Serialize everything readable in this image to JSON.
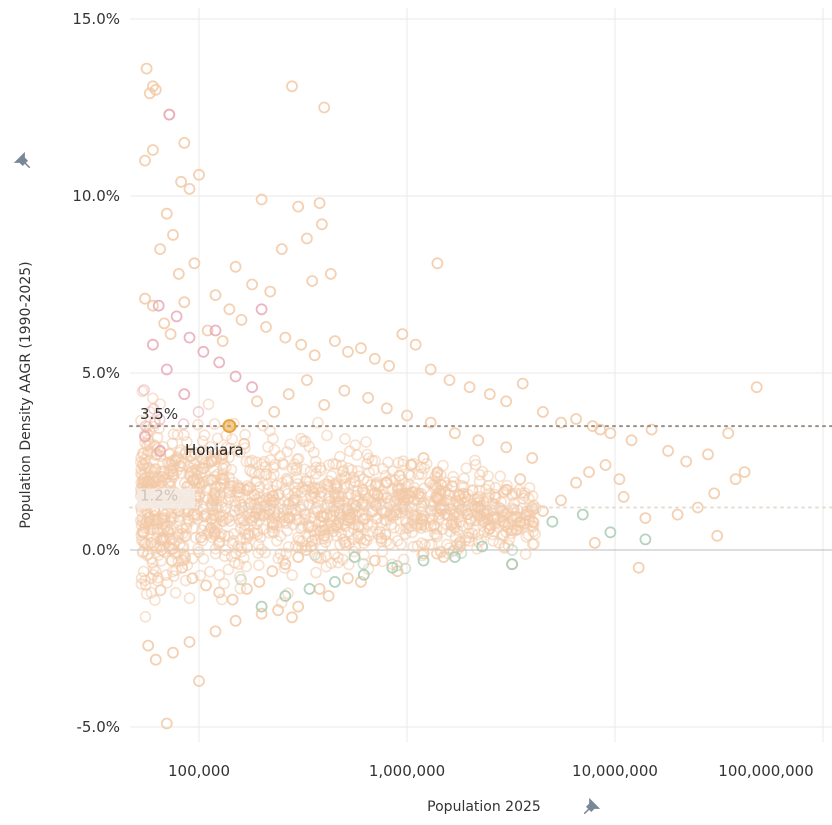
{
  "chart_data": {
    "type": "scatter",
    "title": "",
    "xlabel": "Population 2025",
    "ylabel": "Population Density AAGR (1990-2025)",
    "x_scale": "log",
    "xlim": [
      50000,
      300000000
    ],
    "ylim": [
      -5.0,
      15.0
    ],
    "x_ticks": [
      {
        "value": 100000,
        "label": "100,000"
      },
      {
        "value": 1000000,
        "label": "1,000,000"
      },
      {
        "value": 10000000,
        "label": "10,000,000"
      },
      {
        "value": 100000000,
        "label": "100,000,000"
      }
    ],
    "y_ticks": [
      {
        "value": 15,
        "label": "15.0%"
      },
      {
        "value": 10,
        "label": "10.0%"
      },
      {
        "value": 5,
        "label": "5.0%"
      },
      {
        "value": 0,
        "label": "0.0%"
      },
      {
        "value": -5,
        "label": "-5.0%"
      }
    ],
    "grid": true,
    "reference_lines": [
      {
        "value": 3.5,
        "label": "3.5%",
        "style": "dotted",
        "color": "#9a8f85"
      },
      {
        "value": 1.2,
        "label": "1.2%",
        "style": "dotted",
        "color": "#e6ddd5"
      }
    ],
    "highlight": {
      "name": "Honiara",
      "x": 140000,
      "y": 3.5,
      "color": "#e8a53c"
    },
    "colors": {
      "main": "#f2c9a6",
      "pink": "#e7a9b8",
      "green": "#a9cbb5",
      "highlight": "#e8a53c",
      "grid": "#e9e9e9",
      "zero_line": "#bdbdbd"
    },
    "point_density_note": "",
    "series": [
      {
        "name": "",
        "color": "#f2c9a6",
        "points": [
          [
            56000,
            13.6
          ],
          [
            60000,
            13.1
          ],
          [
            62000,
            13.0
          ],
          [
            58000,
            12.9
          ],
          [
            72000,
            12.3
          ],
          [
            85000,
            11.5
          ],
          [
            60000,
            11.3
          ],
          [
            55000,
            11.0
          ],
          [
            100000,
            10.6
          ],
          [
            82000,
            10.4
          ],
          [
            90000,
            10.2
          ],
          [
            400000,
            12.5
          ],
          [
            280000,
            13.1
          ],
          [
            380000,
            9.8
          ],
          [
            390000,
            9.2
          ],
          [
            200000,
            9.9
          ],
          [
            300000,
            9.7
          ],
          [
            330000,
            8.8
          ],
          [
            250000,
            8.5
          ],
          [
            1400000,
            8.1
          ],
          [
            150000,
            8.0
          ],
          [
            180000,
            7.5
          ],
          [
            220000,
            7.3
          ],
          [
            350000,
            7.6
          ],
          [
            430000,
            7.8
          ],
          [
            70000,
            9.5
          ],
          [
            75000,
            8.9
          ],
          [
            65000,
            8.5
          ],
          [
            95000,
            8.1
          ],
          [
            80000,
            7.8
          ],
          [
            85000,
            7.0
          ],
          [
            120000,
            7.2
          ],
          [
            140000,
            6.8
          ],
          [
            160000,
            6.5
          ],
          [
            60000,
            6.9
          ],
          [
            55000,
            7.1
          ],
          [
            68000,
            6.4
          ],
          [
            73000,
            6.1
          ],
          [
            110000,
            6.2
          ],
          [
            130000,
            5.9
          ],
          [
            210000,
            6.3
          ],
          [
            260000,
            6.0
          ],
          [
            310000,
            5.8
          ],
          [
            360000,
            5.5
          ],
          [
            450000,
            5.9
          ],
          [
            520000,
            5.6
          ],
          [
            600000,
            5.7
          ],
          [
            700000,
            5.4
          ],
          [
            820000,
            5.2
          ],
          [
            950000,
            6.1
          ],
          [
            1100000,
            5.8
          ],
          [
            1300000,
            5.1
          ],
          [
            1600000,
            4.8
          ],
          [
            2000000,
            4.6
          ],
          [
            2500000,
            4.4
          ],
          [
            3000000,
            4.2
          ],
          [
            3600000,
            4.7
          ],
          [
            4500000,
            3.9
          ],
          [
            5500000,
            3.6
          ],
          [
            6500000,
            3.7
          ],
          [
            7800000,
            3.5
          ],
          [
            8500000,
            3.4
          ],
          [
            9500000,
            3.3
          ],
          [
            12000000,
            3.1
          ],
          [
            15000000,
            3.4
          ],
          [
            18000000,
            2.8
          ],
          [
            22000000,
            2.5
          ],
          [
            28000000,
            2.7
          ],
          [
            35000000,
            3.3
          ],
          [
            42000000,
            2.2
          ],
          [
            48000000,
            4.6
          ],
          [
            38000000,
            2.0
          ],
          [
            30000000,
            1.6
          ],
          [
            25000000,
            1.2
          ],
          [
            20000000,
            1.0
          ],
          [
            14000000,
            0.9
          ],
          [
            11000000,
            1.5
          ],
          [
            8000000,
            0.2
          ],
          [
            13000000,
            -0.5
          ],
          [
            31000000,
            0.4
          ],
          [
            3200000,
            -0.4
          ],
          [
            1500000,
            -0.2
          ],
          [
            900000,
            -0.6
          ],
          [
            600000,
            -0.9
          ],
          [
            420000,
            -1.3
          ],
          [
            300000,
            -1.6
          ],
          [
            200000,
            -1.8
          ],
          [
            150000,
            -2.0
          ],
          [
            120000,
            -2.3
          ],
          [
            90000,
            -2.6
          ],
          [
            75000,
            -2.9
          ],
          [
            62000,
            -3.1
          ],
          [
            57000,
            -2.7
          ],
          [
            70000,
            -4.9
          ],
          [
            100000,
            -3.7
          ],
          [
            280000,
            -1.9
          ],
          [
            240000,
            -1.7
          ],
          [
            380000,
            -1.1
          ],
          [
            520000,
            -0.8
          ],
          [
            700000,
            -0.3
          ],
          [
            1200000,
            -0.1
          ],
          [
            1800000,
            0.1
          ],
          [
            2500000,
            0.6
          ],
          [
            3500000,
            0.8
          ],
          [
            4500000,
            1.1
          ],
          [
            5500000,
            1.4
          ],
          [
            6500000,
            1.9
          ],
          [
            7500000,
            2.2
          ],
          [
            9000000,
            2.4
          ],
          [
            10500000,
            2.0
          ],
          [
            4000000,
            2.6
          ],
          [
            3000000,
            2.9
          ],
          [
            2200000,
            3.1
          ],
          [
            1700000,
            3.3
          ],
          [
            1300000,
            3.6
          ],
          [
            1000000,
            3.8
          ],
          [
            800000,
            4.0
          ],
          [
            650000,
            4.3
          ],
          [
            500000,
            4.5
          ],
          [
            400000,
            4.1
          ],
          [
            330000,
            4.8
          ],
          [
            270000,
            4.4
          ],
          [
            230000,
            3.9
          ],
          [
            190000,
            4.2
          ],
          [
            165000,
            3.0
          ],
          [
            130000,
            2.7
          ],
          [
            115000,
            2.5
          ],
          [
            105000,
            2.3
          ],
          [
            98000,
            2.0
          ],
          [
            88000,
            1.8
          ],
          [
            78000,
            1.5
          ],
          [
            69000,
            1.3
          ],
          [
            61000,
            1.1
          ],
          [
            56000,
            0.8
          ],
          [
            54000,
            0.5
          ],
          [
            59000,
            0.2
          ],
          [
            66000,
            0.0
          ],
          [
            74000,
            -0.3
          ],
          [
            83000,
            -0.5
          ],
          [
            93000,
            -0.8
          ],
          [
            108000,
            -1.0
          ],
          [
            125000,
            -1.2
          ],
          [
            145000,
            -1.4
          ],
          [
            170000,
            -1.1
          ],
          [
            195000,
            -0.9
          ],
          [
            225000,
            -0.6
          ],
          [
            260000,
            -0.4
          ],
          [
            300000,
            -0.2
          ],
          [
            345000,
            0.1
          ],
          [
            400000,
            0.4
          ],
          [
            460000,
            0.7
          ],
          [
            530000,
            1.0
          ],
          [
            610000,
            1.3
          ],
          [
            700000,
            1.6
          ],
          [
            800000,
            1.9
          ],
          [
            920000,
            2.1
          ],
          [
            1050000,
            2.4
          ],
          [
            1200000,
            2.6
          ],
          [
            1400000,
            2.2
          ],
          [
            1650000,
            1.8
          ],
          [
            1900000,
            1.5
          ],
          [
            2200000,
            1.2
          ],
          [
            2600000,
            0.9
          ],
          [
            3000000,
            1.7
          ],
          [
            3500000,
            2.0
          ]
        ]
      },
      {
        "name": "",
        "color": "#e7a9b8",
        "points": [
          [
            72000,
            12.3
          ],
          [
            64000,
            6.9
          ],
          [
            78000,
            6.6
          ],
          [
            90000,
            6.0
          ],
          [
            105000,
            5.6
          ],
          [
            125000,
            5.3
          ],
          [
            150000,
            4.9
          ],
          [
            180000,
            4.6
          ],
          [
            60000,
            5.8
          ],
          [
            70000,
            5.1
          ],
          [
            85000,
            4.4
          ],
          [
            120000,
            6.2
          ],
          [
            200000,
            6.8
          ],
          [
            55000,
            3.2
          ],
          [
            65000,
            2.8
          ]
        ]
      },
      {
        "name": "",
        "color": "#a9cbb5",
        "points": [
          [
            200000,
            -1.6
          ],
          [
            260000,
            -1.3
          ],
          [
            340000,
            -1.1
          ],
          [
            450000,
            -0.9
          ],
          [
            620000,
            -0.7
          ],
          [
            850000,
            -0.5
          ],
          [
            1200000,
            -0.3
          ],
          [
            1700000,
            -0.2
          ],
          [
            2300000,
            0.1
          ],
          [
            3200000,
            -0.4
          ],
          [
            5000000,
            0.8
          ],
          [
            7000000,
            1.0
          ],
          [
            9500000,
            0.5
          ],
          [
            14000000,
            0.3
          ],
          [
            560000,
            -0.2
          ]
        ]
      }
    ]
  }
}
